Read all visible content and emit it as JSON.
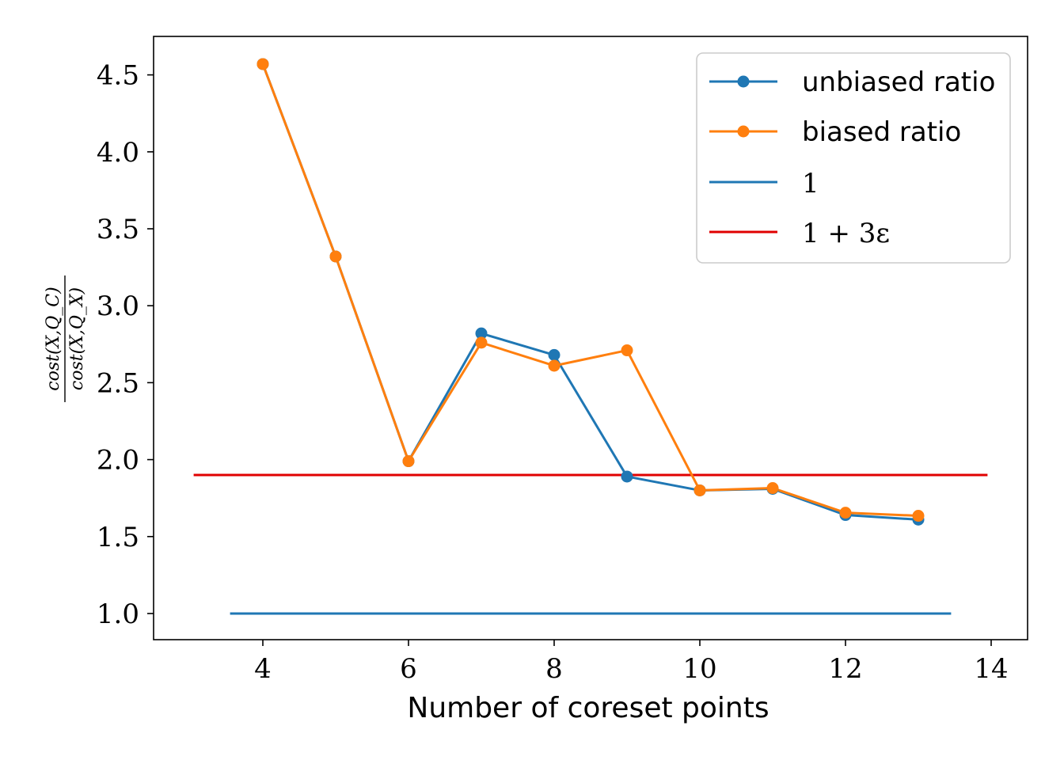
{
  "chart_data": {
    "type": "line",
    "xlabel": "Number of coreset points",
    "ylabel": {
      "numerator": "cost(X,Q_C)",
      "denominator": "cost(X,Q_X)"
    },
    "xlim": [
      2.5,
      14.5
    ],
    "ylim": [
      0.83,
      4.75
    ],
    "xticks": [
      4,
      6,
      8,
      10,
      12,
      14
    ],
    "yticks": [
      1.0,
      1.5,
      2.0,
      2.5,
      3.0,
      3.5,
      4.0,
      4.5
    ],
    "ytick_labels": [
      "1.0",
      "1.5",
      "2.0",
      "2.5",
      "3.0",
      "3.5",
      "4.0",
      "4.5"
    ],
    "grid": false,
    "legend_position": "top-right",
    "series": [
      {
        "name": "unbiased ratio",
        "color": "#1f77b4",
        "marker": "circle",
        "x": [
          4,
          5,
          6,
          7,
          8,
          9,
          10,
          11,
          12,
          13
        ],
        "y": [
          4.57,
          3.32,
          1.99,
          2.82,
          2.68,
          1.89,
          1.8,
          1.81,
          1.64,
          1.61
        ]
      },
      {
        "name": "biased ratio",
        "color": "#ff7f0e",
        "marker": "circle",
        "x": [
          4,
          5,
          6,
          7,
          8,
          9,
          10,
          11,
          12,
          13
        ],
        "y": [
          4.57,
          3.32,
          1.99,
          2.76,
          2.61,
          2.71,
          1.8,
          1.815,
          1.655,
          1.635
        ]
      }
    ],
    "hlines": [
      {
        "name": "1",
        "color": "#1f77b4",
        "y": 1.0,
        "x_range": [
          3.55,
          13.45
        ]
      },
      {
        "name": "1 + 3ε",
        "color": "#e00000",
        "y": 1.9,
        "x_range": [
          3.05,
          13.95
        ]
      }
    ]
  }
}
